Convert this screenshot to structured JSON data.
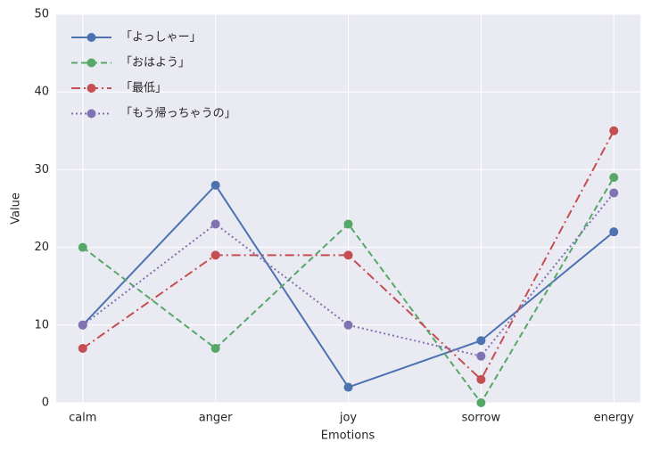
{
  "chart_data": {
    "type": "line",
    "x_label": "Emotions",
    "y_label": "Value",
    "categories": [
      "calm",
      "anger",
      "joy",
      "sorrow",
      "energy"
    ],
    "series": [
      {
        "name": "「よっしゃー」",
        "color": "#4c72b0",
        "linestyle": "solid",
        "values": [
          10,
          28,
          2,
          8,
          22
        ]
      },
      {
        "name": "「おはよう」",
        "color": "#55a868",
        "linestyle": "dashed",
        "values": [
          20,
          7,
          23,
          0,
          29
        ]
      },
      {
        "name": "「最低」",
        "color": "#c44e52",
        "linestyle": "dashdot",
        "values": [
          7,
          19,
          19,
          3,
          35
        ]
      },
      {
        "name": "「もう帰っちゃうの」",
        "color": "#8172b2",
        "linestyle": "dotted",
        "values": [
          10,
          23,
          10,
          6,
          27
        ]
      }
    ],
    "ylim": [
      0,
      50
    ],
    "yticks": [
      0,
      10,
      20,
      30,
      40,
      50
    ],
    "grid": true,
    "legend": "upper left"
  }
}
